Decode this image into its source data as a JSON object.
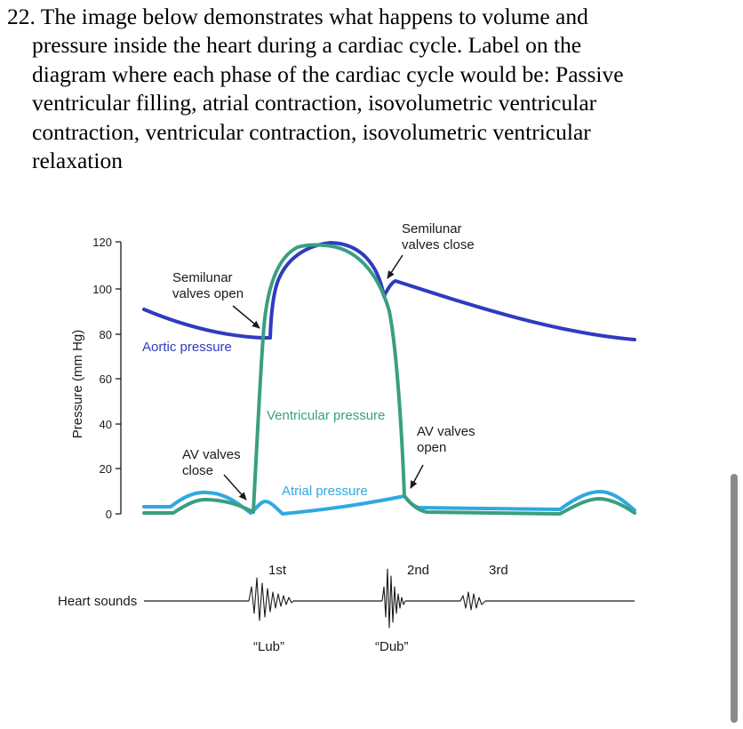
{
  "question": {
    "lines": [
      "22. The image below demonstrates what happens to volume and",
      "pressure inside the heart during a cardiac cycle.  Label on the",
      "diagram where each phase of the cardiac cycle would be:  Passive",
      "ventricular filling, atrial contraction, isovolumetric ventricular",
      "contraction, ventricular contraction, isovolumetric ventricular",
      "relaxation"
    ]
  },
  "diagram": {
    "y_axis_label": "Pressure (mm Hg)",
    "y_ticks": [
      "0",
      "20",
      "40",
      "60",
      "80",
      "100",
      "120"
    ],
    "annotations": {
      "semilunar_close_1": "Semilunar",
      "semilunar_close_2": "valves close",
      "semilunar_open_1": "Semilunar",
      "semilunar_open_2": "valves open",
      "av_close_1": "AV valves",
      "av_close_2": "close",
      "av_open_1": "AV valves",
      "av_open_2": "open"
    },
    "curves": {
      "aortic": "Aortic pressure",
      "ventricular": "Ventricular pressure",
      "atrial": "Atrial pressure"
    },
    "heart_sounds": {
      "label": "Heart sounds",
      "first": "1st",
      "second": "2nd",
      "third": "3rd",
      "lub": "“Lub”",
      "dub": "“Dub”"
    },
    "colors": {
      "aortic": "#2f3bc0",
      "ventricular": "#3a9e82",
      "atrial": "#2fa9e0",
      "arrow": "#1a1a1a"
    }
  }
}
